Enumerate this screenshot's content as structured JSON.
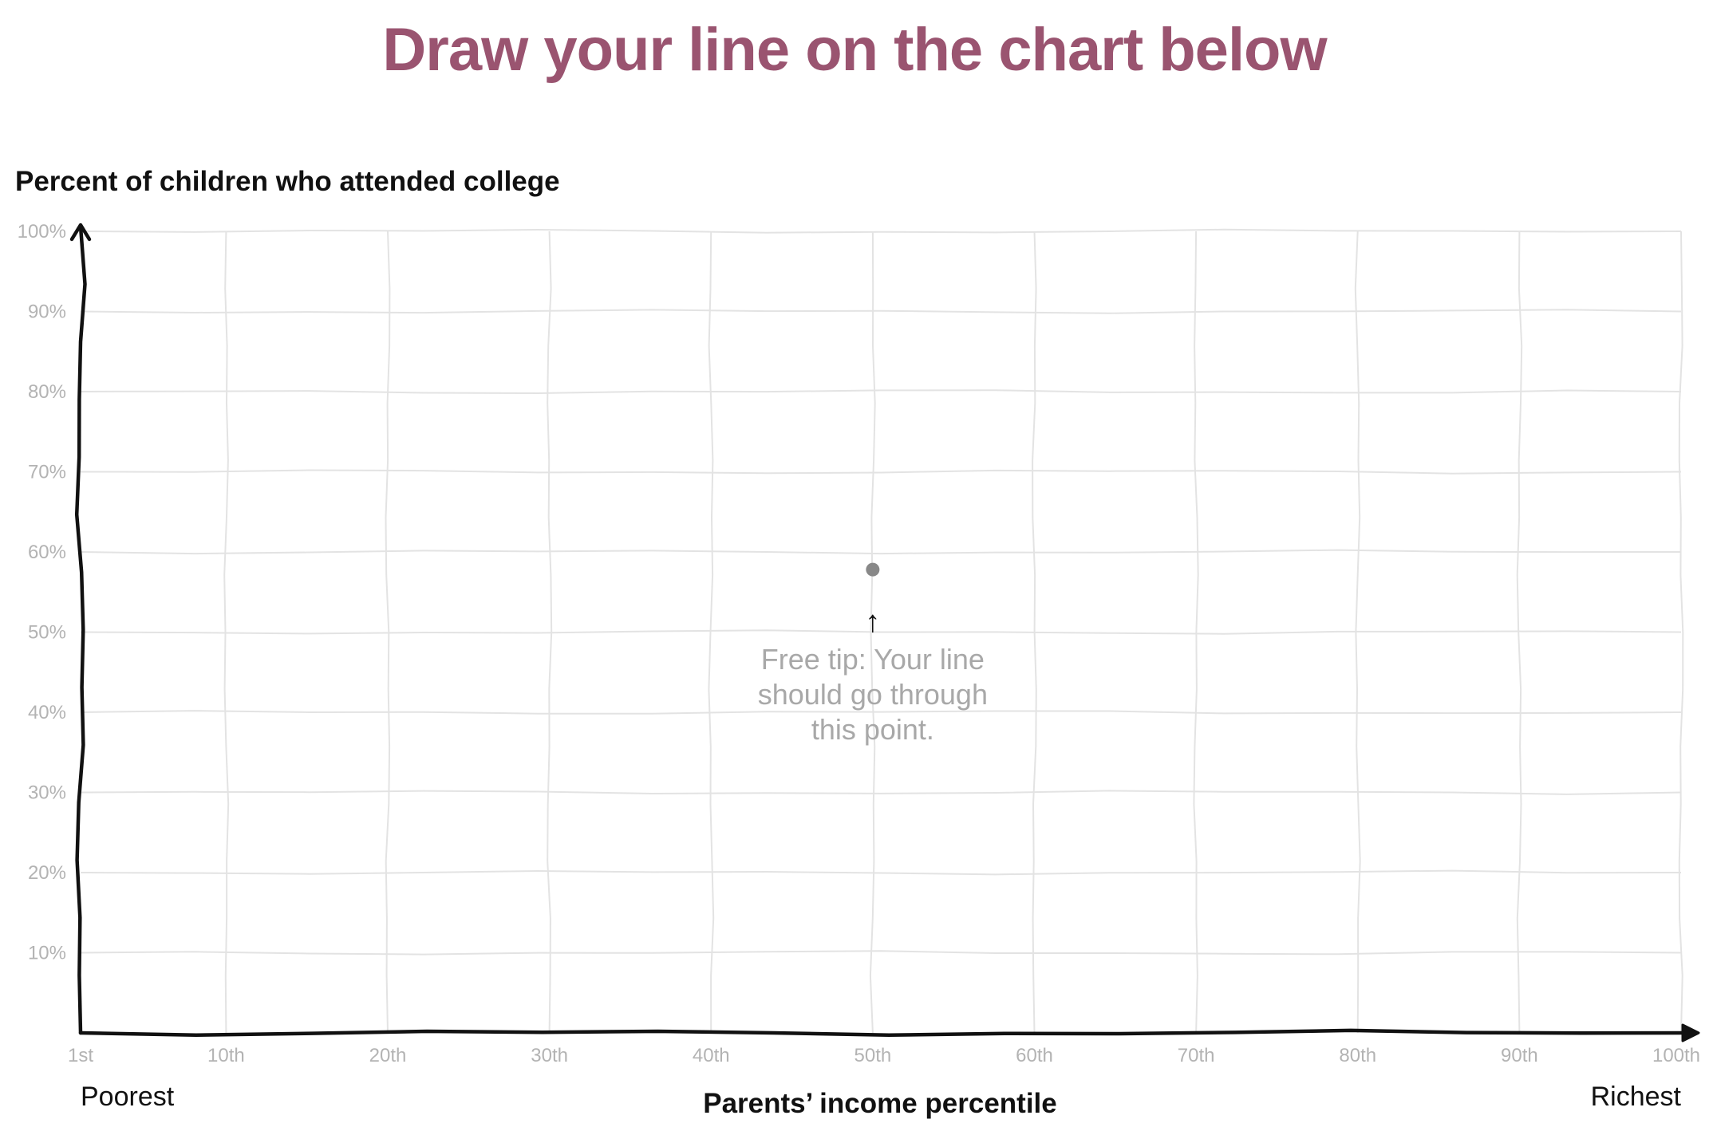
{
  "title": "Draw your line on the chart below",
  "colors": {
    "title": "#9a5470",
    "axis": "#111111",
    "grid": "#e3e3e3",
    "tick_label": "#b3b3b3",
    "point": "#888888",
    "tip_text": "#a8a8a8"
  },
  "chart_data": {
    "type": "line",
    "title": "",
    "ylabel": "Percent of children who attended college",
    "xlabel": "Parents’ income percentile",
    "xlim": [
      1,
      100
    ],
    "ylim": [
      0,
      100
    ],
    "grid": true,
    "x_ticks": [
      {
        "value": 1,
        "label": "1st"
      },
      {
        "value": 10,
        "label": "10th"
      },
      {
        "value": 20,
        "label": "20th"
      },
      {
        "value": 30,
        "label": "30th"
      },
      {
        "value": 40,
        "label": "40th"
      },
      {
        "value": 50,
        "label": "50th"
      },
      {
        "value": 60,
        "label": "60th"
      },
      {
        "value": 70,
        "label": "70th"
      },
      {
        "value": 80,
        "label": "80th"
      },
      {
        "value": 90,
        "label": "90th"
      },
      {
        "value": 100,
        "label": "100th"
      }
    ],
    "y_ticks": [
      {
        "value": 10,
        "label": "10%"
      },
      {
        "value": 20,
        "label": "20%"
      },
      {
        "value": 30,
        "label": "30%"
      },
      {
        "value": 40,
        "label": "40%"
      },
      {
        "value": 50,
        "label": "50%"
      },
      {
        "value": 60,
        "label": "60%"
      },
      {
        "value": 70,
        "label": "70%"
      },
      {
        "value": 80,
        "label": "80%"
      },
      {
        "value": 90,
        "label": "90%"
      },
      {
        "value": 100,
        "label": "100%"
      }
    ],
    "x_end_labels": {
      "left": "Poorest",
      "right": "Richest"
    },
    "series": [],
    "given_point": {
      "x": 50,
      "y": 57.8
    },
    "annotation": {
      "arrow": "↑",
      "lines": [
        "Free tip: Your line",
        "should go through",
        "this point."
      ]
    }
  }
}
